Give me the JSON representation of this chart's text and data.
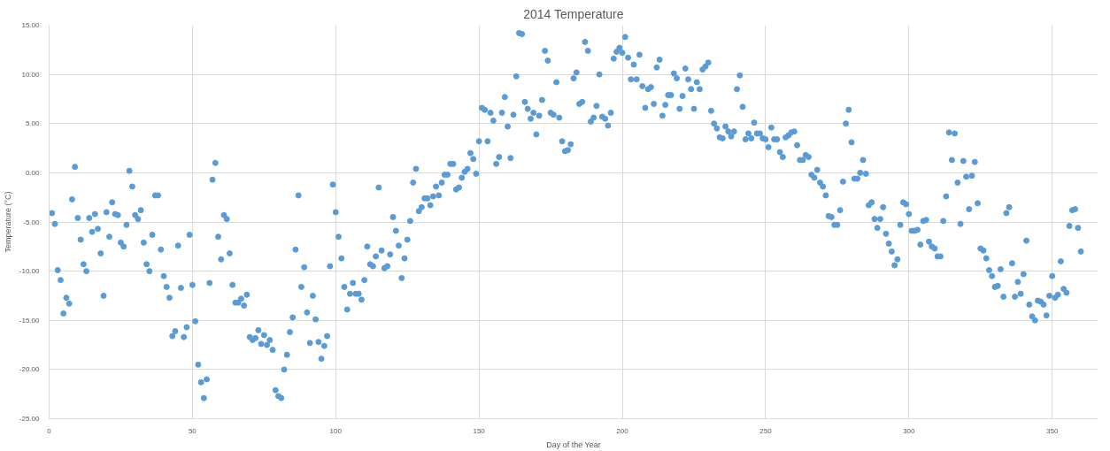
{
  "chart_data": {
    "type": "scatter",
    "title": "2014 Temperature",
    "xlabel": "Day of the Year",
    "ylabel": "Temperature (°C)",
    "xlim": [
      0,
      366
    ],
    "ylim": [
      -25,
      15
    ],
    "xticks": [
      0,
      50,
      100,
      150,
      200,
      250,
      300,
      350
    ],
    "yticks": [
      {
        "value": -25,
        "label": "-25.00"
      },
      {
        "value": -20,
        "label": "-20.00"
      },
      {
        "value": -15,
        "label": "-15.00"
      },
      {
        "value": -10,
        "label": "-10.00"
      },
      {
        "value": -5,
        "label": "-5.00"
      },
      {
        "value": 0,
        "label": "0.00"
      },
      {
        "value": 5,
        "label": "5.00"
      },
      {
        "value": 10,
        "label": "10.00"
      },
      {
        "value": 15,
        "label": "15.00"
      }
    ],
    "grid": true,
    "marker": "circle",
    "series": [
      {
        "color": "#5b9bd5",
        "x": [
          1,
          2,
          3,
          4,
          5,
          6,
          7,
          8,
          9,
          10,
          11,
          12,
          13,
          14,
          15,
          16,
          17,
          18,
          19,
          20,
          21,
          22,
          23,
          24,
          25,
          26,
          27,
          28,
          29,
          30,
          31,
          32,
          33,
          34,
          35,
          36,
          37,
          38,
          39,
          40,
          41,
          42,
          43,
          44,
          45,
          46,
          47,
          48,
          49,
          50,
          51,
          52,
          53,
          54,
          55,
          56,
          57,
          58,
          59,
          60,
          61,
          62,
          63,
          64,
          65,
          66,
          67,
          68,
          69,
          70,
          71,
          72,
          73,
          74,
          75,
          76,
          77,
          78,
          79,
          80,
          81,
          82,
          83,
          84,
          85,
          86,
          87,
          88,
          89,
          90,
          91,
          92,
          93,
          94,
          95,
          96,
          97,
          98,
          99,
          100,
          101,
          102,
          103,
          104,
          105,
          106,
          107,
          108,
          109,
          110,
          111,
          112,
          113,
          114,
          115,
          116,
          117,
          118,
          119,
          120,
          121,
          122,
          123,
          124,
          125,
          126,
          127,
          128,
          129,
          130,
          131,
          132,
          133,
          134,
          135,
          136,
          137,
          138,
          139,
          140,
          141,
          142,
          143,
          144,
          145,
          146,
          147,
          148,
          149,
          150,
          151,
          152,
          153,
          154,
          155,
          156,
          157,
          158,
          159,
          160,
          161,
          162,
          163,
          164,
          165,
          166,
          167,
          168,
          169,
          170,
          171,
          172,
          173,
          174,
          175,
          176,
          177,
          178,
          179,
          180,
          181,
          182,
          183,
          184,
          185,
          186,
          187,
          188,
          189,
          190,
          191,
          192,
          193,
          194,
          195,
          196,
          197,
          198,
          199,
          200,
          201,
          202,
          203,
          204,
          205,
          206,
          207,
          208,
          209,
          210,
          211,
          212,
          213,
          214,
          215,
          216,
          217,
          218,
          219,
          220,
          221,
          222,
          223,
          224,
          225,
          226,
          227,
          228,
          229,
          230,
          231,
          232,
          233,
          234,
          235,
          236,
          237,
          238,
          239,
          240,
          241,
          242,
          243,
          244,
          245,
          246,
          247,
          248,
          249,
          250,
          251,
          252,
          253,
          254,
          255,
          256,
          257,
          258,
          259,
          260,
          261,
          262,
          263,
          264,
          265,
          266,
          267,
          268,
          269,
          270,
          271,
          272,
          273,
          274,
          275,
          276,
          277,
          278,
          279,
          280,
          281,
          282,
          283,
          284,
          285,
          286,
          287,
          288,
          289,
          290,
          291,
          292,
          293,
          294,
          295,
          296,
          297,
          298,
          299,
          300,
          301,
          302,
          303,
          304,
          305,
          306,
          307,
          308,
          309,
          310,
          311,
          312,
          313,
          314,
          315,
          316,
          317,
          318,
          319,
          320,
          321,
          322,
          323,
          324,
          325,
          326,
          327,
          328,
          329,
          330,
          331,
          332,
          333,
          334,
          335,
          336,
          337,
          338,
          339,
          340,
          341,
          342,
          343,
          344,
          345,
          346,
          347,
          348,
          349,
          350,
          351,
          352,
          353,
          354,
          355,
          356,
          357,
          358,
          359,
          360
        ],
        "values": [
          -4.1,
          -5.2,
          -9.9,
          -10.9,
          -14.3,
          -12.7,
          -13.3,
          -2.7,
          0.6,
          -4.6,
          -6.8,
          -9.3,
          -10.0,
          -4.6,
          -6.0,
          -4.2,
          -5.7,
          -8.2,
          -12.5,
          -4.0,
          -6.5,
          -3.0,
          -4.2,
          -4.3,
          -7.1,
          -7.5,
          -5.3,
          0.2,
          -1.4,
          -4.3,
          -4.7,
          -3.8,
          -7.1,
          -9.3,
          -10.0,
          -6.3,
          -2.3,
          -2.3,
          -7.8,
          -10.5,
          -11.6,
          -12.7,
          -16.6,
          -16.1,
          -7.4,
          -11.7,
          -16.7,
          -15.7,
          -6.3,
          -11.4,
          -15.1,
          -19.5,
          -21.3,
          -22.9,
          -21.0,
          -11.2,
          -0.7,
          1.0,
          -6.5,
          -8.8,
          -4.3,
          -4.7,
          -8.2,
          -11.4,
          -13.2,
          -13.2,
          -12.8,
          -13.5,
          -12.4,
          -16.7,
          -17.0,
          -16.8,
          -16.0,
          -17.4,
          -16.5,
          -17.5,
          -17.0,
          -18.0,
          -22.1,
          -22.7,
          -22.9,
          -20.0,
          -18.5,
          -16.2,
          -14.7,
          -7.8,
          -2.3,
          -11.6,
          -9.6,
          -14.2,
          -17.3,
          -12.5,
          -14.9,
          -17.2,
          -18.9,
          -17.6,
          -16.6,
          -9.5,
          -1.2,
          -4.0,
          -6.5,
          -8.7,
          -11.6,
          -13.9,
          -12.3,
          -11.2,
          -12.3,
          -12.3,
          -12.9,
          -10.9,
          -7.5,
          -9.3,
          -9.5,
          -8.5,
          -1.5,
          -7.9,
          -9.7,
          -9.5,
          -8.3,
          -4.5,
          -5.9,
          -7.4,
          -10.7,
          -8.7,
          -6.8,
          -4.9,
          -1.0,
          0.4,
          -3.9,
          -3.5,
          -2.6,
          -2.6,
          -3.3,
          -2.4,
          -1.4,
          -2.3,
          -1.0,
          -0.2,
          -0.2,
          0.9,
          0.9,
          -1.7,
          -1.5,
          -0.5,
          0.1,
          0.4,
          2.0,
          1.4,
          -0.1,
          3.2,
          6.6,
          6.4,
          3.2,
          6.1,
          5.3,
          0.9,
          1.6,
          6.1,
          7.7,
          4.7,
          1.5,
          5.9,
          9.8,
          14.2,
          14.1,
          7.2,
          6.5,
          5.5,
          6.1,
          3.9,
          5.8,
          7.4,
          12.4,
          11.4,
          6.1,
          5.9,
          9.2,
          5.6,
          3.2,
          2.2,
          2.3,
          2.9,
          9.6,
          10.2,
          7.0,
          7.2,
          13.3,
          12.4,
          5.2,
          5.6,
          6.8,
          10.0,
          5.7,
          5.5,
          4.8,
          6.1,
          11.6,
          12.3,
          12.7,
          12.2,
          13.8,
          11.7,
          9.5,
          11.0,
          9.5,
          12.0,
          8.8,
          6.6,
          8.5,
          8.7,
          7.0,
          10.7,
          11.5,
          5.8,
          6.9,
          7.9,
          7.9,
          10.1,
          9.6,
          6.5,
          7.8,
          10.6,
          9.5,
          8.5,
          6.5,
          9.2,
          8.5,
          10.5,
          10.8,
          11.2,
          6.3,
          5.0,
          4.5,
          3.6,
          3.5,
          4.7,
          4.2,
          3.7,
          4.2,
          8.5,
          9.9,
          6.7,
          3.4,
          4.0,
          3.5,
          5.1,
          4.0,
          4.0,
          3.5,
          3.4,
          2.6,
          4.6,
          3.4,
          3.4,
          2.1,
          1.6,
          3.6,
          3.8,
          4.1,
          4.2,
          2.8,
          1.3,
          1.3,
          1.8,
          1.6,
          -0.2,
          -0.5,
          0.3,
          -1.0,
          -1.4,
          -2.3,
          -4.4,
          -4.5,
          -5.3,
          -5.3,
          -3.8,
          -0.9,
          5.0,
          6.4,
          3.1,
          -0.6,
          -0.6,
          0.0,
          1.3,
          -0.1,
          -3.3,
          -3.0,
          -4.7,
          -5.6,
          -4.7,
          -3.5,
          -6.2,
          -7.2,
          -8.0,
          -9.4,
          -8.8,
          -5.3,
          -3.0,
          -3.2,
          -4.2,
          -5.9,
          -5.9,
          -5.8,
          -7.3,
          -4.9,
          -4.8,
          -7.0,
          -7.5,
          -7.7,
          -8.5,
          -8.5,
          -4.9,
          -2.4,
          4.1,
          1.3,
          4.0,
          -1.0,
          -5.2,
          1.2,
          -0.4,
          -3.7,
          -0.3,
          1.1,
          -3.1,
          -7.7,
          -7.9,
          -8.7,
          -9.9,
          -10.5,
          -11.6,
          -11.5,
          -9.8,
          -12.6,
          -4.1,
          -3.5,
          -9.2,
          -12.6,
          -11.1,
          -12.3,
          -10.3,
          -6.9,
          -13.4,
          -14.6,
          -15.0,
          -13.0,
          -13.1,
          -13.4,
          -14.5,
          -12.5,
          -10.5,
          -12.7,
          -12.4,
          -9.0,
          -11.8,
          -12.2,
          -5.4,
          -3.8,
          -3.7,
          -5.6,
          -8.0
        ]
      }
    ]
  }
}
